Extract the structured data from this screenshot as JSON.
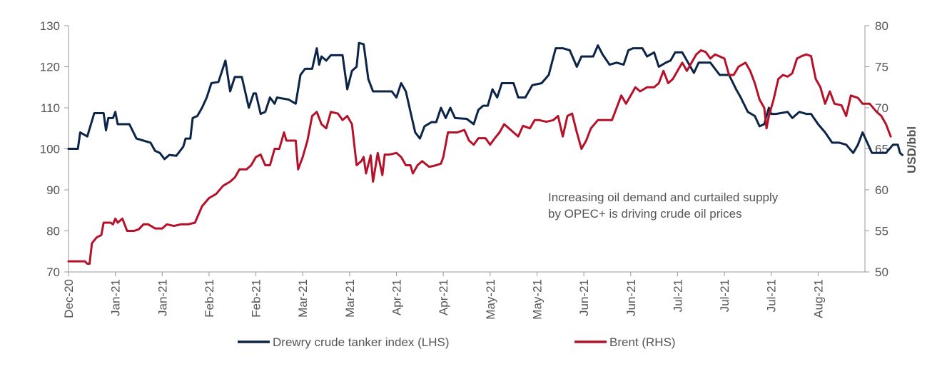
{
  "chart_data": {
    "type": "line",
    "x_labels": [
      "Dec-20",
      "Jan-21",
      "Jan-21",
      "Feb-21",
      "Feb-21",
      "Mar-21",
      "Mar-21",
      "Apr-21",
      "Apr-21",
      "May-21",
      "May-21",
      "Jun-21",
      "Jun-21",
      "Jul-21",
      "Jul-21",
      "Jul-21",
      "Aug-21"
    ],
    "y_left": {
      "min": 70,
      "max": 130,
      "ticks": [
        70,
        80,
        90,
        100,
        110,
        120,
        130
      ]
    },
    "y_right": {
      "min": 50,
      "max": 80,
      "ticks": [
        50,
        55,
        60,
        65,
        70,
        75,
        80
      ],
      "label": "USD/bbl"
    },
    "annotation": [
      "Increasing oil demand and curtailed supply",
      "by OPEC+  is driving crude oil prices"
    ],
    "series": [
      {
        "name": "Drewry crude tanker index (LHS)",
        "axis": "left",
        "color": "#0b2447",
        "points": [
          [
            0,
            100
          ],
          [
            0.2,
            100
          ],
          [
            0.25,
            104
          ],
          [
            0.4,
            103
          ],
          [
            0.55,
            108.7
          ],
          [
            0.75,
            108.7
          ],
          [
            0.8,
            104.5
          ],
          [
            0.85,
            107.5
          ],
          [
            0.95,
            107.5
          ],
          [
            1.0,
            109
          ],
          [
            1.05,
            106
          ],
          [
            1.3,
            106
          ],
          [
            1.45,
            102.5
          ],
          [
            1.6,
            102
          ],
          [
            1.75,
            101.5
          ],
          [
            1.85,
            99.5
          ],
          [
            1.95,
            99
          ],
          [
            2.05,
            97.5
          ],
          [
            2.15,
            98.5
          ],
          [
            2.3,
            98.3
          ],
          [
            2.45,
            100.5
          ],
          [
            2.5,
            102.5
          ],
          [
            2.6,
            102.5
          ],
          [
            2.65,
            107.5
          ],
          [
            2.75,
            108
          ],
          [
            2.85,
            110
          ],
          [
            2.95,
            112.5
          ],
          [
            3.05,
            116
          ],
          [
            3.2,
            116.3
          ],
          [
            3.35,
            121.5
          ],
          [
            3.45,
            114
          ],
          [
            3.55,
            117.5
          ],
          [
            3.7,
            117.5
          ],
          [
            3.85,
            110
          ],
          [
            3.95,
            113.5
          ],
          [
            4.0,
            113.5
          ],
          [
            4.1,
            108.5
          ],
          [
            4.2,
            109
          ],
          [
            4.3,
            112.5
          ],
          [
            4.4,
            111
          ],
          [
            4.45,
            112.5
          ],
          [
            4.7,
            112
          ],
          [
            4.85,
            111
          ],
          [
            4.95,
            118
          ],
          [
            5.05,
            119.5
          ],
          [
            5.2,
            119.5
          ],
          [
            5.3,
            124.5
          ],
          [
            5.35,
            120.5
          ],
          [
            5.4,
            122.5
          ],
          [
            5.5,
            121.5
          ],
          [
            5.6,
            122.8
          ],
          [
            5.85,
            122.8
          ],
          [
            5.95,
            114.5
          ],
          [
            6.05,
            119
          ],
          [
            6.15,
            120
          ],
          [
            6.2,
            125.8
          ],
          [
            6.3,
            125.5
          ],
          [
            6.4,
            117
          ],
          [
            6.5,
            114
          ],
          [
            6.9,
            114
          ],
          [
            7.0,
            112.5
          ],
          [
            7.1,
            116
          ],
          [
            7.2,
            114
          ],
          [
            7.3,
            109
          ],
          [
            7.4,
            104
          ],
          [
            7.5,
            102.5
          ],
          [
            7.6,
            105.5
          ],
          [
            7.75,
            106.5
          ],
          [
            7.85,
            106.5
          ],
          [
            7.95,
            110
          ],
          [
            8.05,
            107.5
          ],
          [
            8.15,
            110
          ],
          [
            8.25,
            107.5
          ],
          [
            8.5,
            107.3
          ],
          [
            8.65,
            106
          ],
          [
            8.75,
            109.5
          ],
          [
            8.85,
            110.5
          ],
          [
            8.95,
            110.5
          ],
          [
            9.05,
            114.5
          ],
          [
            9.15,
            112.5
          ],
          [
            9.25,
            116
          ],
          [
            9.5,
            116
          ],
          [
            9.6,
            112.5
          ],
          [
            9.75,
            112.5
          ],
          [
            9.9,
            115.5
          ],
          [
            10.1,
            116
          ],
          [
            10.25,
            118
          ],
          [
            10.4,
            124.5
          ],
          [
            10.55,
            124.5
          ],
          [
            10.7,
            124
          ],
          [
            10.85,
            120
          ],
          [
            10.95,
            122.5
          ],
          [
            11.2,
            122.5
          ],
          [
            11.3,
            125.2
          ],
          [
            11.4,
            123
          ],
          [
            11.55,
            120.5
          ],
          [
            11.7,
            121
          ],
          [
            11.85,
            120.5
          ],
          [
            11.95,
            124
          ],
          [
            12.05,
            124.5
          ],
          [
            12.25,
            124.5
          ],
          [
            12.35,
            122.5
          ],
          [
            12.5,
            123.5
          ],
          [
            12.6,
            120
          ],
          [
            12.75,
            121
          ],
          [
            12.85,
            121.5
          ],
          [
            12.95,
            123.5
          ],
          [
            13.1,
            123.5
          ],
          [
            13.25,
            120.5
          ],
          [
            13.35,
            118.5
          ],
          [
            13.45,
            121
          ],
          [
            13.7,
            121
          ],
          [
            13.8,
            119.5
          ],
          [
            13.9,
            118
          ],
          [
            14.1,
            118
          ],
          [
            14.25,
            114.5
          ],
          [
            14.35,
            112.5
          ],
          [
            14.5,
            109
          ],
          [
            14.65,
            108
          ],
          [
            14.75,
            105.5
          ],
          [
            14.85,
            106
          ],
          [
            14.95,
            110
          ],
          [
            15.0,
            108.5
          ],
          [
            15.1,
            108.5
          ],
          [
            15.35,
            109
          ],
          [
            15.45,
            107.5
          ],
          [
            15.6,
            109
          ],
          [
            15.75,
            108.5
          ],
          [
            15.85,
            108.5
          ],
          [
            16.0,
            106
          ],
          [
            16.15,
            104
          ],
          [
            16.3,
            101.5
          ],
          [
            16.45,
            101.5
          ],
          [
            16.6,
            101
          ],
          [
            16.75,
            99
          ],
          [
            16.85,
            101
          ],
          [
            16.95,
            104
          ],
          [
            17.05,
            101.5
          ],
          [
            17.15,
            99
          ],
          [
            17.45,
            99
          ],
          [
            17.6,
            101
          ],
          [
            17.7,
            101
          ],
          [
            17.75,
            99
          ],
          [
            17.8,
            98.5
          ]
        ]
      },
      {
        "name": "Brent (RHS)",
        "axis": "right",
        "color": "#b5122a",
        "points": [
          [
            0,
            51.3
          ],
          [
            0.35,
            51.3
          ],
          [
            0.4,
            51
          ],
          [
            0.45,
            51
          ],
          [
            0.5,
            53.5
          ],
          [
            0.6,
            54.2
          ],
          [
            0.7,
            54.5
          ],
          [
            0.75,
            56
          ],
          [
            0.9,
            56
          ],
          [
            0.95,
            55.8
          ],
          [
            1.0,
            56.5
          ],
          [
            1.05,
            56
          ],
          [
            1.15,
            56.5
          ],
          [
            1.25,
            55
          ],
          [
            1.4,
            55
          ],
          [
            1.5,
            55.2
          ],
          [
            1.6,
            55.8
          ],
          [
            1.7,
            55.8
          ],
          [
            1.85,
            55.3
          ],
          [
            2.0,
            55.3
          ],
          [
            2.1,
            55.8
          ],
          [
            2.25,
            55.6
          ],
          [
            2.4,
            55.8
          ],
          [
            2.55,
            55.8
          ],
          [
            2.7,
            56
          ],
          [
            2.85,
            58
          ],
          [
            3.0,
            59
          ],
          [
            3.15,
            59.5
          ],
          [
            3.3,
            60.5
          ],
          [
            3.45,
            61
          ],
          [
            3.55,
            61.5
          ],
          [
            3.65,
            62.5
          ],
          [
            3.8,
            62.5
          ],
          [
            3.9,
            63
          ],
          [
            4.0,
            64
          ],
          [
            4.1,
            64.3
          ],
          [
            4.2,
            63
          ],
          [
            4.3,
            63
          ],
          [
            4.4,
            65
          ],
          [
            4.5,
            65
          ],
          [
            4.6,
            67
          ],
          [
            4.65,
            66
          ],
          [
            4.75,
            66
          ],
          [
            4.85,
            66
          ],
          [
            4.9,
            62.5
          ],
          [
            5.0,
            64
          ],
          [
            5.1,
            66
          ],
          [
            5.2,
            69
          ],
          [
            5.3,
            69.5
          ],
          [
            5.4,
            68
          ],
          [
            5.5,
            67.5
          ],
          [
            5.6,
            69.5
          ],
          [
            5.75,
            69.3
          ],
          [
            5.85,
            68.5
          ],
          [
            5.95,
            69
          ],
          [
            6.05,
            68
          ],
          [
            6.15,
            63
          ],
          [
            6.25,
            63.5
          ],
          [
            6.3,
            64
          ],
          [
            6.35,
            62
          ],
          [
            6.45,
            64.2
          ],
          [
            6.5,
            61
          ],
          [
            6.6,
            64.5
          ],
          [
            6.7,
            61.8
          ],
          [
            6.75,
            64.3
          ],
          [
            6.85,
            64.3
          ],
          [
            7.0,
            64.5
          ],
          [
            7.1,
            64
          ],
          [
            7.2,
            63
          ],
          [
            7.3,
            63
          ],
          [
            7.35,
            62
          ],
          [
            7.45,
            63
          ],
          [
            7.55,
            63.5
          ],
          [
            7.7,
            62.8
          ],
          [
            7.85,
            63
          ],
          [
            7.95,
            63.2
          ],
          [
            8.0,
            64
          ],
          [
            8.1,
            67
          ],
          [
            8.3,
            67
          ],
          [
            8.45,
            67.3
          ],
          [
            8.55,
            66
          ],
          [
            8.65,
            65.5
          ],
          [
            8.75,
            66.3
          ],
          [
            8.9,
            66.3
          ],
          [
            9.0,
            65.5
          ],
          [
            9.1,
            66.3
          ],
          [
            9.2,
            67
          ],
          [
            9.3,
            68
          ],
          [
            9.4,
            67.5
          ],
          [
            9.5,
            67
          ],
          [
            9.6,
            66.5
          ],
          [
            9.7,
            67.8
          ],
          [
            9.85,
            67.5
          ],
          [
            9.95,
            68.5
          ],
          [
            10.05,
            68.5
          ],
          [
            10.2,
            68.3
          ],
          [
            10.35,
            68.5
          ],
          [
            10.45,
            69
          ],
          [
            10.55,
            66.5
          ],
          [
            10.65,
            69
          ],
          [
            10.75,
            69.3
          ],
          [
            10.85,
            67
          ],
          [
            10.95,
            65
          ],
          [
            11.05,
            66
          ],
          [
            11.15,
            67.5
          ],
          [
            11.3,
            68.5
          ],
          [
            11.45,
            68.5
          ],
          [
            11.6,
            68.5
          ],
          [
            11.7,
            70
          ],
          [
            11.8,
            71.5
          ],
          [
            11.9,
            70.5
          ],
          [
            12.0,
            71.5
          ],
          [
            12.1,
            72.5
          ],
          [
            12.2,
            72
          ],
          [
            12.35,
            72.5
          ],
          [
            12.5,
            72.5
          ],
          [
            12.6,
            73
          ],
          [
            12.7,
            74.5
          ],
          [
            12.8,
            73
          ],
          [
            12.9,
            73.5
          ],
          [
            13.0,
            74.5
          ],
          [
            13.1,
            75.5
          ],
          [
            13.2,
            74.5
          ],
          [
            13.3,
            75.5
          ],
          [
            13.4,
            76.5
          ],
          [
            13.5,
            77
          ],
          [
            13.6,
            76.8
          ],
          [
            13.7,
            76
          ],
          [
            13.8,
            76.5
          ],
          [
            14.0,
            76
          ],
          [
            14.1,
            74
          ],
          [
            14.2,
            74
          ],
          [
            14.3,
            75
          ],
          [
            14.45,
            75.5
          ],
          [
            14.55,
            74.5
          ],
          [
            14.65,
            73
          ],
          [
            14.75,
            71
          ],
          [
            14.85,
            70
          ],
          [
            14.9,
            67.5
          ],
          [
            14.95,
            69
          ],
          [
            15.05,
            71
          ],
          [
            15.15,
            73.5
          ],
          [
            15.25,
            74
          ],
          [
            15.35,
            73.8
          ],
          [
            15.45,
            74.2
          ],
          [
            15.55,
            76
          ],
          [
            15.65,
            76.3
          ],
          [
            15.75,
            76.5
          ],
          [
            15.85,
            76.3
          ],
          [
            15.95,
            73.5
          ],
          [
            16.05,
            72.5
          ],
          [
            16.15,
            70.5
          ],
          [
            16.25,
            72
          ],
          [
            16.35,
            70.5
          ],
          [
            16.5,
            70.3
          ],
          [
            16.6,
            69
          ],
          [
            16.7,
            71.5
          ],
          [
            16.85,
            71.2
          ],
          [
            16.95,
            70.5
          ],
          [
            17.1,
            70.5
          ],
          [
            17.25,
            69.5
          ],
          [
            17.35,
            69
          ],
          [
            17.45,
            68
          ],
          [
            17.55,
            66.5
          ]
        ]
      }
    ]
  }
}
